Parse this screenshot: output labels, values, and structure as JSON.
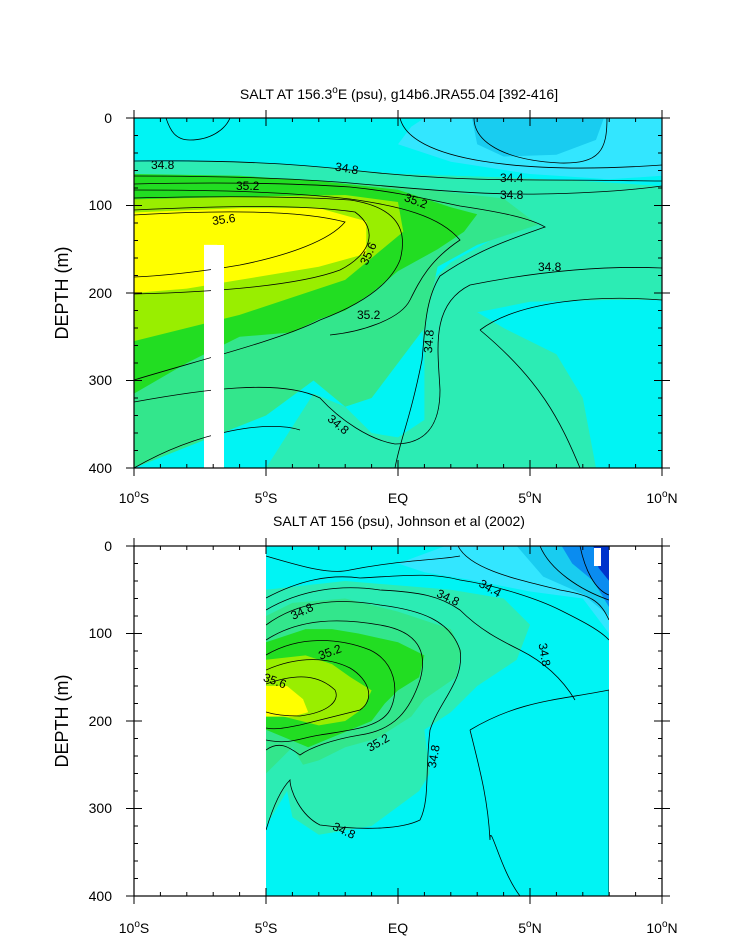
{
  "colors": {
    "yellow": "#ffff00",
    "lime": "#99ee00",
    "green": "#22dd22",
    "midgreen": "#33e68c",
    "aqua": "#2cecb4",
    "cyan": "#00f4f4",
    "lightblue": "#33e6ff",
    "skyblue": "#19ccf0",
    "blue": "#0a8cf0",
    "darkblue": "#0033cc",
    "white": "#ffffff"
  },
  "chart_data": [
    {
      "type": "contour",
      "title_parts": [
        "SALT AT 156.3",
        "o",
        "E (psu), g14b6.JRA55.04 [392-416]"
      ],
      "xlabel": "",
      "ylabel": "DEPTH (m)",
      "xlim": [
        -10,
        10
      ],
      "ylim": [
        400,
        0
      ],
      "x_ticks": [
        -10,
        -5,
        0,
        5,
        10
      ],
      "x_tick_labels": [
        [
          "10",
          "o",
          "S"
        ],
        [
          "5",
          "o",
          "S"
        ],
        [
          "EQ",
          "",
          ""
        ],
        [
          "5",
          "o",
          "N"
        ],
        [
          "10",
          "o",
          "N"
        ]
      ],
      "y_ticks": [
        0,
        100,
        200,
        300,
        400
      ],
      "y_tick_labels": [
        "0",
        "100",
        "200",
        "300",
        "400"
      ],
      "contour_labels": [
        "34.8",
        "34.8",
        "34.4",
        "34.8",
        "35.2",
        "35.2",
        "35.6",
        "35.6",
        "34.8",
        "35.2",
        "34.8",
        "34.8"
      ],
      "regions": [
        {
          "level": "34.6-34.8",
          "color": "cyan",
          "points": [
            [
              -10,
              0
            ],
            [
              10,
              0
            ],
            [
              10,
              400
            ],
            [
              -10,
              400
            ]
          ]
        },
        {
          "level": "34.4-34.6",
          "color": "lightblue",
          "points": [
            [
              1,
              0
            ],
            [
              10,
              0
            ],
            [
              10,
              66
            ],
            [
              8,
              70
            ],
            [
              5,
              64
            ],
            [
              2,
              50
            ],
            [
              0,
              30
            ],
            [
              0.5,
              10
            ]
          ]
        },
        {
          "level": "34.2-34.4",
          "color": "skyblue",
          "points": [
            [
              2.8,
              0
            ],
            [
              7.8,
              0
            ],
            [
              7.5,
              25
            ],
            [
              6,
              42
            ],
            [
              4,
              44
            ],
            [
              3,
              30
            ]
          ]
        },
        {
          "level": "34.8-35.0",
          "color": "aqua",
          "points": [
            [
              -10,
              50
            ],
            [
              -6,
              50
            ],
            [
              -3,
              56
            ],
            [
              0,
              64
            ],
            [
              4,
              68
            ],
            [
              7,
              72
            ],
            [
              10,
              78
            ],
            [
              10,
              400
            ],
            [
              7,
              400
            ],
            [
              6,
              270
            ],
            [
              3,
              212
            ],
            [
              5,
              195
            ],
            [
              8,
              195
            ],
            [
              10,
              185
            ],
            [
              10,
              400
            ],
            [
              -10,
              400
            ]
          ]
        },
        {
          "level": "34.8-35.0",
          "color": "aqua",
          "points": [
            [
              -10,
              50
            ],
            [
              -6,
              50
            ],
            [
              -3,
              56
            ],
            [
              0,
              64
            ],
            [
              4,
              68
            ],
            [
              7,
              72
            ],
            [
              10,
              78
            ],
            [
              10,
              400
            ],
            [
              -10,
              400
            ]
          ]
        },
        {
          "level": "34.6-34.8 interior",
          "color": "cyan",
          "points": [
            [
              3,
              222
            ],
            [
              5,
              210
            ],
            [
              8,
              208
            ],
            [
              10,
              208
            ],
            [
              10,
              400
            ],
            [
              7.5,
              400
            ],
            [
              7,
              320
            ],
            [
              6,
              270
            ],
            [
              4,
              240
            ]
          ]
        },
        {
          "level": "34.6-34.8 lower",
          "color": "cyan",
          "points": [
            [
              -5,
              400
            ],
            [
              -3.2,
              315
            ],
            [
              -2,
              330
            ],
            [
              -1,
              360
            ],
            [
              0,
              365
            ],
            [
              1,
              345
            ],
            [
              1,
              270
            ],
            [
              0.8,
              200
            ],
            [
              2,
              165
            ],
            [
              3.5,
              140
            ],
            [
              5,
              125
            ],
            [
              5.3,
              122
            ],
            [
              3,
              102
            ],
            [
              0,
              92
            ],
            [
              -3,
              82
            ],
            [
              -6,
              80
            ],
            [
              -10,
              80
            ],
            [
              -10,
              400
            ]
          ]
        },
        {
          "level": "35.0-35.2",
          "color": "midgreen",
          "points": [
            [
              -10,
              72
            ],
            [
              -6,
              70
            ],
            [
              -3,
              72
            ],
            [
              0,
              78
            ],
            [
              4,
              92
            ],
            [
              5.3,
              122
            ],
            [
              3,
              145
            ],
            [
              1.5,
              170
            ],
            [
              1,
              240
            ],
            [
              0,
              280
            ],
            [
              -1,
              320
            ],
            [
              -2,
              330
            ],
            [
              -3.2,
              300
            ],
            [
              -5,
              340
            ],
            [
              -7.5,
              370
            ],
            [
              -10,
              400
            ],
            [
              -10,
              330
            ]
          ]
        },
        {
          "level": "35.2-35.4",
          "color": "green",
          "points": [
            [
              -10,
              64
            ],
            [
              -6,
              66
            ],
            [
              -3,
              72
            ],
            [
              0,
              82
            ],
            [
              2,
              102
            ],
            [
              3,
              110
            ],
            [
              2.5,
              130
            ],
            [
              1.5,
              150
            ],
            [
              0,
              175
            ],
            [
              -1,
              200
            ],
            [
              -2,
              220
            ],
            [
              -3,
              230
            ],
            [
              -4,
              245
            ],
            [
              -6,
              250
            ],
            [
              -8,
              280
            ],
            [
              -10,
              315
            ]
          ]
        },
        {
          "level": "35.4-35.6",
          "color": "lime",
          "points": [
            [
              -10,
              93
            ],
            [
              -6,
              90
            ],
            [
              -2,
              88
            ],
            [
              0,
              96
            ],
            [
              0.2,
              130
            ],
            [
              -1,
              160
            ],
            [
              -2,
              185
            ],
            [
              -4,
              205
            ],
            [
              -6,
              225
            ],
            [
              -8,
              240
            ],
            [
              -10,
              255
            ]
          ]
        },
        {
          "level": "35.6+",
          "color": "yellow",
          "points": [
            [
              -10,
              108
            ],
            [
              -6,
              103
            ],
            [
              -3,
              103
            ],
            [
              -1.2,
              118
            ],
            [
              -1.2,
              155
            ],
            [
              -3,
              170
            ],
            [
              -6,
              185
            ],
            [
              -8,
              195
            ],
            [
              -10,
              200
            ]
          ]
        },
        {
          "level": "land",
          "color": "white",
          "points": [
            [
              -7.35,
              145
            ],
            [
              -6.85,
              145
            ],
            [
              -6.85,
              400
            ],
            [
              -7.35,
              400
            ]
          ]
        }
      ]
    },
    {
      "type": "contour",
      "title": "SALT AT 156 (psu), Johnson et al (2002)",
      "xlabel": "",
      "ylabel": "DEPTH (m)",
      "xlim": [
        -10,
        10
      ],
      "ylim": [
        400,
        0
      ],
      "data_extent_x": [
        -5,
        8
      ],
      "x_ticks": [
        -10,
        -5,
        0,
        5,
        10
      ],
      "x_tick_labels": [
        [
          "10",
          "o",
          "S"
        ],
        [
          "5",
          "o",
          "S"
        ],
        [
          "EQ",
          "",
          ""
        ],
        [
          "5",
          "o",
          "N"
        ],
        [
          "10",
          "o",
          "N"
        ]
      ],
      "y_ticks": [
        0,
        100,
        200,
        300,
        400
      ],
      "y_tick_labels": [
        "0",
        "100",
        "200",
        "300",
        "400"
      ],
      "contour_labels": [
        "34.8",
        "34.8",
        "34.4",
        "34.8",
        "35.2",
        "35.6",
        "35.2",
        "34.8",
        "34.8"
      ],
      "regions": [
        {
          "level": "34.6-34.8",
          "color": "cyan",
          "points": [
            [
              -5,
              0
            ],
            [
              8,
              0
            ],
            [
              8,
              400
            ],
            [
              -5,
              400
            ]
          ]
        },
        {
          "level": "34.4-34.6",
          "color": "lightblue",
          "points": [
            [
              1.8,
              0
            ],
            [
              8,
              0
            ],
            [
              8,
              100
            ],
            [
              7,
              60
            ],
            [
              5,
              52
            ],
            [
              3,
              40
            ],
            [
              1,
              30
            ],
            [
              0,
              20
            ]
          ]
        },
        {
          "level": "34.2-34.4",
          "color": "skyblue",
          "points": [
            [
              4.5,
              0
            ],
            [
              8,
              0
            ],
            [
              8,
              80
            ],
            [
              7,
              55
            ],
            [
              5.5,
              35
            ]
          ]
        },
        {
          "level": "34.0-34.2",
          "color": "blue",
          "points": [
            [
              6.2,
              0
            ],
            [
              8,
              0
            ],
            [
              8,
              70
            ],
            [
              7.4,
              40
            ],
            [
              6.6,
              20
            ]
          ]
        },
        {
          "level": "<34.0",
          "color": "darkblue",
          "points": [
            [
              7.4,
              0
            ],
            [
              8,
              0
            ],
            [
              8,
              40
            ],
            [
              7.6,
              25
            ]
          ]
        },
        {
          "level": "34.8-35.0",
          "color": "aqua",
          "points": [
            [
              -5,
              50
            ],
            [
              -2,
              40
            ],
            [
              0,
              45
            ],
            [
              2,
              50
            ],
            [
              4,
              60
            ],
            [
              5,
              90
            ],
            [
              4.5,
              130
            ],
            [
              3,
              160
            ],
            [
              2,
              190
            ],
            [
              1,
              210
            ],
            [
              1.2,
              260
            ],
            [
              0.8,
              280
            ],
            [
              -1,
              320
            ],
            [
              -3,
              330
            ],
            [
              -4,
              310
            ],
            [
              -4.2,
              280
            ],
            [
              -5,
              320
            ]
          ]
        },
        {
          "level": "35.0-35.2",
          "color": "midgreen",
          "points": [
            [
              -5,
              80
            ],
            [
              -4,
              65
            ],
            [
              -2,
              60
            ],
            [
              0,
              75
            ],
            [
              2,
              95
            ],
            [
              2.4,
              120
            ],
            [
              2.2,
              150
            ],
            [
              1,
              175
            ],
            [
              0.5,
              195
            ],
            [
              -0.8,
              220
            ],
            [
              -2,
              230
            ],
            [
              -3,
              245
            ],
            [
              -3.6,
              250
            ],
            [
              -4,
              230
            ],
            [
              -5,
              260
            ]
          ]
        },
        {
          "level": "35.2-35.4",
          "color": "green",
          "points": [
            [
              -5,
              110
            ],
            [
              -3.5,
              95
            ],
            [
              -2.5,
              95
            ],
            [
              -1.5,
              100
            ],
            [
              0,
              110
            ],
            [
              1,
              125
            ],
            [
              0.8,
              150
            ],
            [
              0,
              165
            ],
            [
              -0.5,
              180
            ],
            [
              -1,
              200
            ],
            [
              -2.2,
              215
            ],
            [
              -3.4,
              230
            ],
            [
              -5,
              210
            ]
          ]
        },
        {
          "level": "35.4-35.6",
          "color": "lime",
          "points": [
            [
              -5,
              130
            ],
            [
              -3.5,
              125
            ],
            [
              -2.5,
              135
            ],
            [
              -1.8,
              150
            ],
            [
              -1,
              165
            ],
            [
              -1.3,
              185
            ],
            [
              -2,
              200
            ],
            [
              -3,
              205
            ],
            [
              -5,
              190
            ]
          ]
        },
        {
          "level": "35.6+",
          "color": "yellow",
          "points": [
            [
              -5,
              160
            ],
            [
              -4.2,
              160
            ],
            [
              -3.6,
              175
            ],
            [
              -3.4,
              190
            ],
            [
              -4,
              195
            ],
            [
              -5,
              195
            ]
          ]
        }
      ]
    }
  ]
}
